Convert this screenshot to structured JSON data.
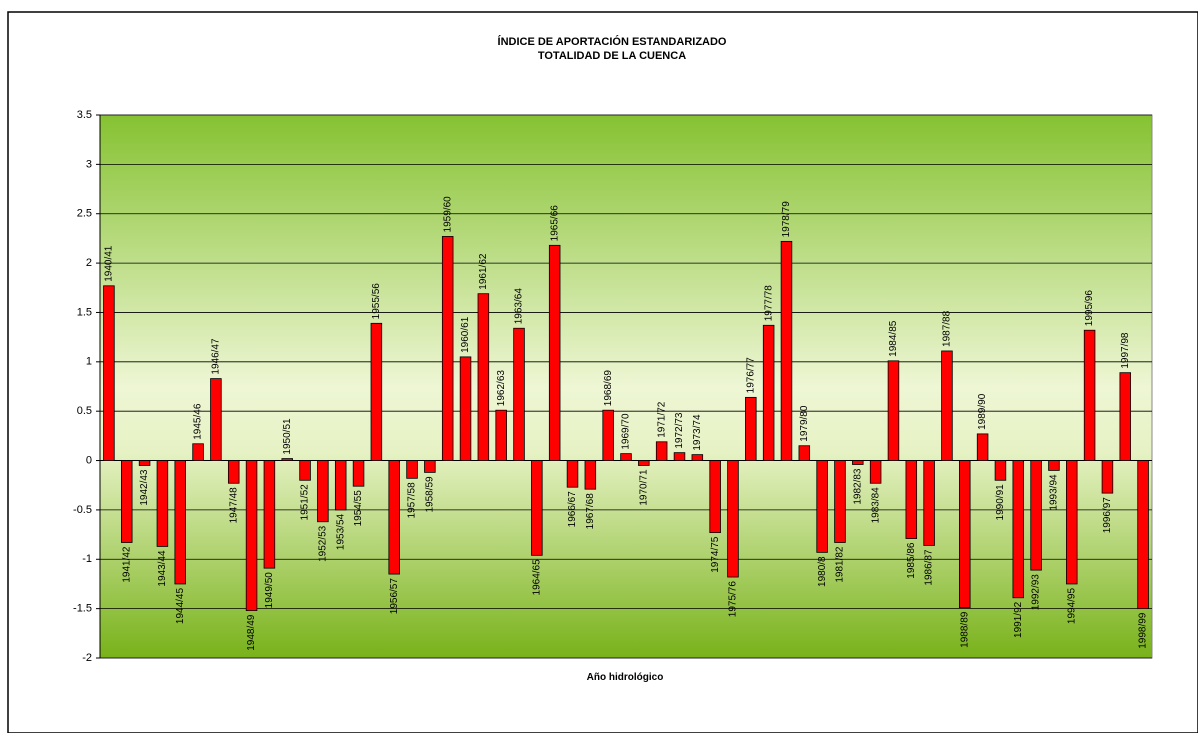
{
  "chart_data": {
    "type": "bar",
    "title": "ÍNDICE DE APORTACIÓN ESTANDARIZADO",
    "subtitle": "TOTALIDAD DE LA CUENCA",
    "x_label": "Año hidrológico",
    "categories": [
      "1940/41",
      "1941/42",
      "1942/43",
      "1943/44",
      "1944/45",
      "1945/46",
      "1946/47",
      "1947/48",
      "1948/49",
      "1949/50",
      "1950/51",
      "1951/52",
      "1952/53",
      "1953/54",
      "1954/55",
      "1955/56",
      "1956/57",
      "1957/58",
      "1958/59",
      "1959/60",
      "1960/61",
      "1961/62",
      "1962/63",
      "1963/64",
      "1964/65",
      "1965/66",
      "1966/67",
      "1967/68",
      "1968/69",
      "1969/70",
      "1970/71",
      "1971/72",
      "1972/73",
      "1973/74",
      "1974/75",
      "1975/76",
      "1976/77",
      "1977/78",
      "1978/79",
      "1979/80",
      "1980/8",
      "1981/82",
      "1982/83",
      "1983/84",
      "1984/85",
      "1985/86",
      "1986/87",
      "1987/88",
      "1988/89",
      "1989/90",
      "1990/91",
      "1991/92",
      "1992/93",
      "1993/94",
      "1994/95",
      "1995/96",
      "1996/97",
      "1997/98",
      "1998/99"
    ],
    "values": [
      1.77,
      -0.83,
      -0.05,
      -0.87,
      -1.25,
      0.17,
      0.83,
      -0.23,
      -1.52,
      -1.09,
      0.02,
      -0.2,
      -0.62,
      -0.5,
      -0.26,
      1.39,
      -1.15,
      -0.18,
      -0.12,
      2.27,
      1.05,
      1.69,
      0.51,
      1.34,
      -0.96,
      2.18,
      -0.27,
      -0.29,
      0.51,
      0.07,
      -0.05,
      0.19,
      0.08,
      0.06,
      -0.73,
      -1.18,
      0.64,
      1.37,
      2.22,
      0.15,
      -0.93,
      -0.83,
      -0.04,
      -0.23,
      1.01,
      -0.79,
      -0.86,
      1.11,
      -1.49,
      0.27,
      -0.2,
      -1.39,
      -1.11,
      -0.1,
      -1.25,
      1.32,
      -0.33,
      0.89,
      -1.5
    ],
    "color": "#ff0000",
    "ylim": [
      -2,
      3.5
    ],
    "yticks": [
      -2,
      -1.5,
      -1,
      -0.5,
      0,
      0.5,
      1,
      1.5,
      2,
      2.5,
      3,
      3.5
    ],
    "grid": true
  }
}
